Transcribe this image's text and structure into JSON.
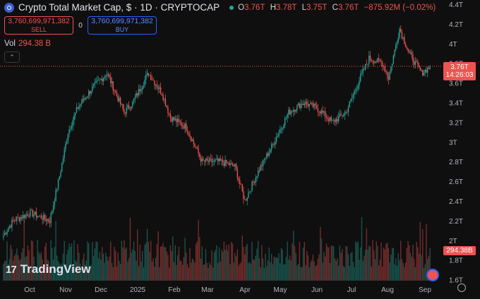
{
  "header": {
    "title": "Crypto Total Market Cap, $ · 1D · CRYPTOCAP",
    "ohlc": [
      {
        "key": "O",
        "value": "3.76T"
      },
      {
        "key": "H",
        "value": "3.78T"
      },
      {
        "key": "L",
        "value": "3.75T"
      },
      {
        "key": "C",
        "value": "3.76T"
      }
    ],
    "change": "−875.92M (−0.02%)"
  },
  "trade": {
    "sell_price": "3,760,699,971,382",
    "sell_label": "SELL",
    "spread": "0",
    "buy_price": "3,760,699,971,382",
    "buy_label": "BUY"
  },
  "volume": {
    "label": "Vol",
    "value": "294.38 B"
  },
  "price_tag": {
    "price": "3.76T",
    "countdown": "14:26:03"
  },
  "volume_tag": "294.38B",
  "brand": "TradingView",
  "colors": {
    "up": "#26a69a",
    "down": "#ef5350",
    "background": "#0f0f0f",
    "accent": "#2962ff"
  },
  "chart_data": {
    "type": "candlestick",
    "y_axis_labels": [
      "4.4T",
      "4.2T",
      "4T",
      "3.8T",
      "3.6T",
      "3.4T",
      "3.2T",
      "3T",
      "2.8T",
      "2.6T",
      "2.4T",
      "2.2T",
      "2T",
      "1.8T",
      "1.6T"
    ],
    "ylim": [
      1.6,
      4.4
    ],
    "x_axis_labels": [
      "Oct",
      "Nov",
      "Dec",
      "2025",
      "Feb",
      "Mar",
      "Apr",
      "May",
      "Jun",
      "Jul",
      "Aug",
      "Sep"
    ],
    "last_price": 3.76,
    "closes_approx": [
      {
        "date": "2024-09-23",
        "close": 2.05
      },
      {
        "date": "2024-10-01",
        "close": 2.2
      },
      {
        "date": "2024-10-15",
        "close": 2.28
      },
      {
        "date": "2024-10-31",
        "close": 2.2
      },
      {
        "date": "2024-11-08",
        "close": 2.65
      },
      {
        "date": "2024-11-15",
        "close": 3.1
      },
      {
        "date": "2024-11-23",
        "close": 3.35
      },
      {
        "date": "2024-12-05",
        "close": 3.55
      },
      {
        "date": "2024-12-17",
        "close": 3.7
      },
      {
        "date": "2024-12-31",
        "close": 3.3
      },
      {
        "date": "2025-01-07",
        "close": 3.4
      },
      {
        "date": "2025-01-20",
        "close": 3.7
      },
      {
        "date": "2025-01-31",
        "close": 3.5
      },
      {
        "date": "2025-02-07",
        "close": 3.25
      },
      {
        "date": "2025-02-20",
        "close": 3.15
      },
      {
        "date": "2025-03-05",
        "close": 2.8
      },
      {
        "date": "2025-03-20",
        "close": 2.8
      },
      {
        "date": "2025-04-01",
        "close": 2.75
      },
      {
        "date": "2025-04-09",
        "close": 2.4
      },
      {
        "date": "2025-04-20",
        "close": 2.7
      },
      {
        "date": "2025-05-01",
        "close": 2.95
      },
      {
        "date": "2025-05-15",
        "close": 3.3
      },
      {
        "date": "2025-05-27",
        "close": 3.4
      },
      {
        "date": "2025-06-07",
        "close": 3.35
      },
      {
        "date": "2025-06-20",
        "close": 3.2
      },
      {
        "date": "2025-07-01",
        "close": 3.3
      },
      {
        "date": "2025-07-11",
        "close": 3.6
      },
      {
        "date": "2025-07-20",
        "close": 3.85
      },
      {
        "date": "2025-07-31",
        "close": 3.8
      },
      {
        "date": "2025-08-05",
        "close": 3.65
      },
      {
        "date": "2025-08-14",
        "close": 4.15
      },
      {
        "date": "2025-08-22",
        "close": 3.9
      },
      {
        "date": "2025-09-01",
        "close": 3.7
      },
      {
        "date": "2025-09-08",
        "close": 3.76
      }
    ]
  }
}
